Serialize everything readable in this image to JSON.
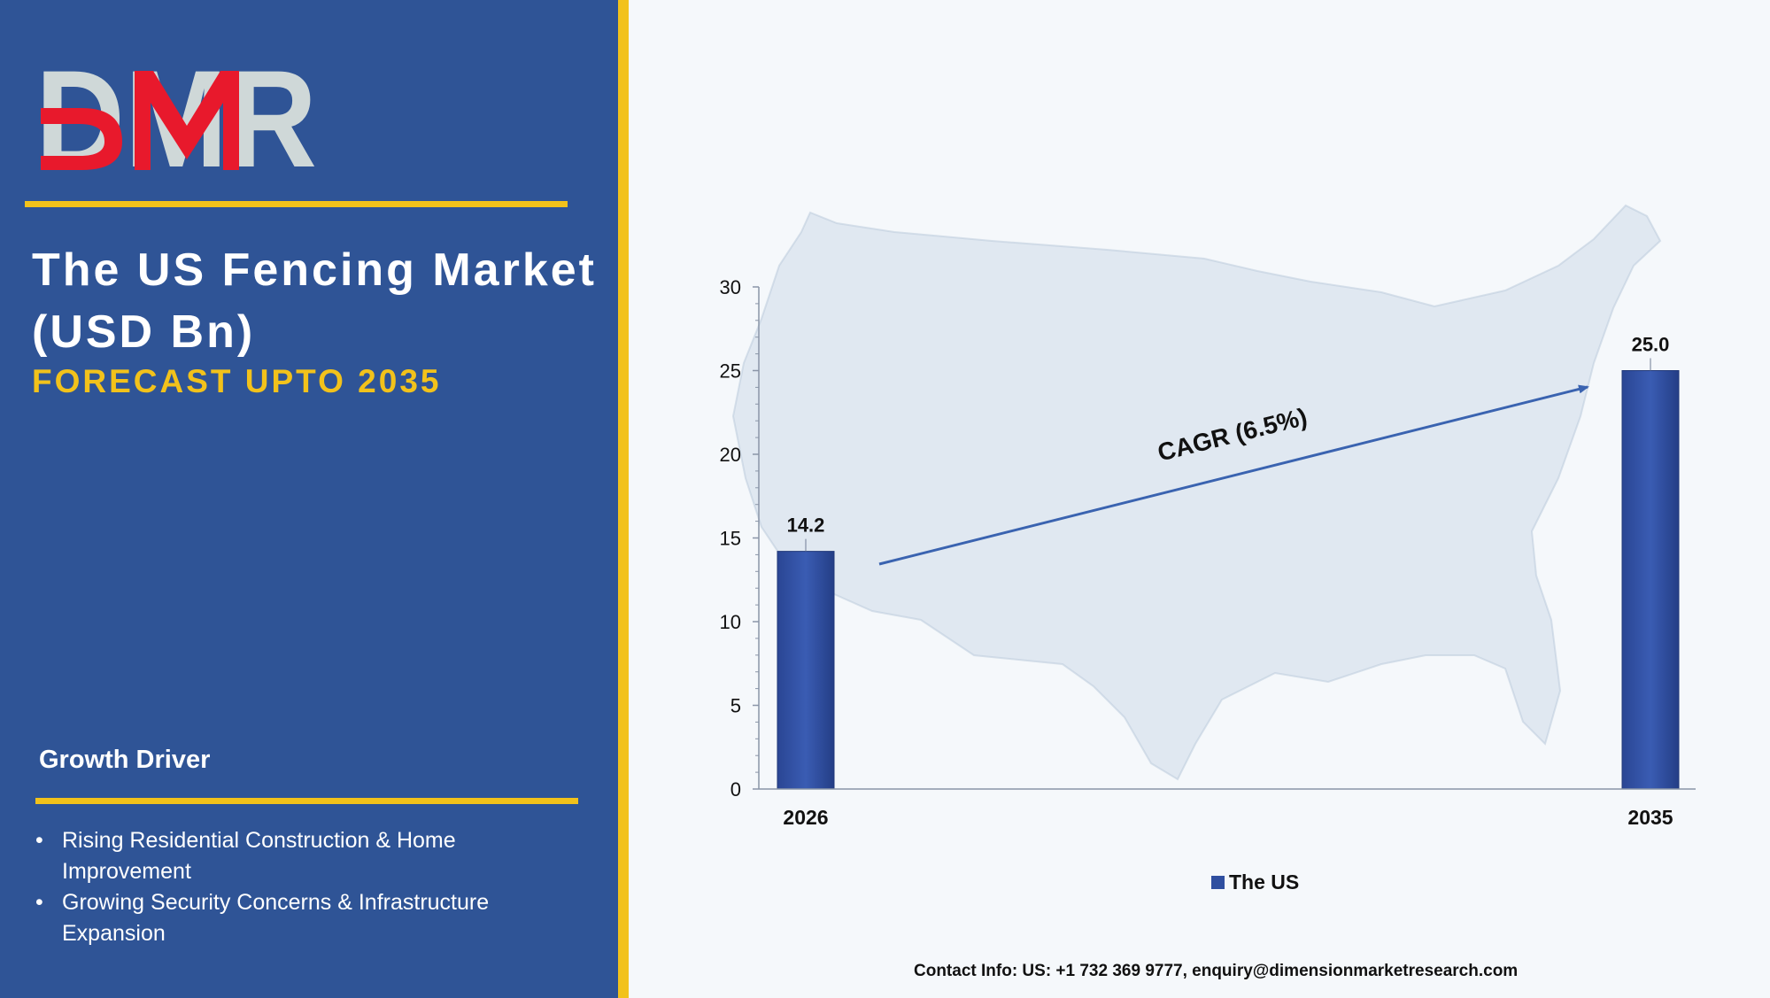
{
  "brand": {
    "logo_text": "DMR",
    "colors": {
      "red": "#e8192c",
      "grey": "#cfd8d8",
      "panel": "#2f5496",
      "accent": "#f2c21b"
    }
  },
  "left": {
    "title": "The US Fencing Market (USD Bn)",
    "subtitle": "FORECAST UPTO 2035",
    "growth_driver_heading": "Growth Driver",
    "drivers": [
      "Rising Residential Construction & Home Improvement",
      "Growing Security Concerns & Infrastructure Expansion"
    ]
  },
  "chart_data": {
    "type": "bar",
    "categories": [
      "2026",
      "2035"
    ],
    "series": [
      {
        "name": "The US",
        "values": [
          14.2,
          25.0
        ],
        "color": "#2f4fa0"
      }
    ],
    "data_labels": [
      "14.2",
      "25.0"
    ],
    "ylim": [
      0,
      30
    ],
    "yticks": [
      0,
      5,
      10,
      15,
      20,
      25,
      30
    ],
    "annotation": "CAGR (6.5%)",
    "legend_position": "bottom-center",
    "grid": false,
    "background_image": "us-map"
  },
  "footer": {
    "contact": "Contact Info: US: +1 732 369 9777, enquiry@dimensionmarketresearch.com"
  }
}
